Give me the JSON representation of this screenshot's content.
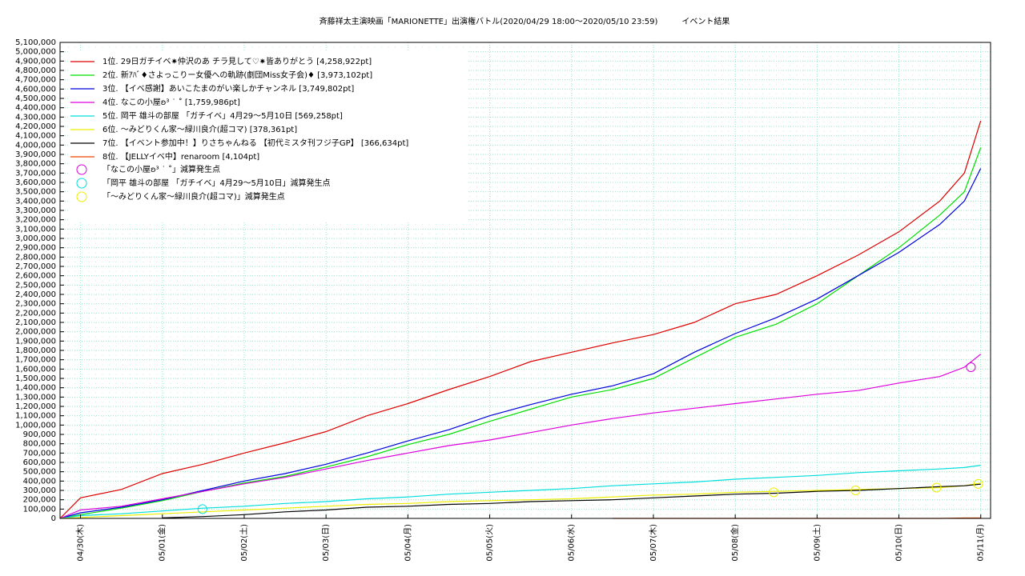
{
  "chart_data": {
    "type": "line",
    "title": "斉藤祥太主演映画「MARIONETTE」出演権バトル(2020/04/29 18:00～2020/05/10 23:59)　　　イベント結果",
    "x": [
      -0.25,
      0,
      0.5,
      1,
      1.5,
      2,
      2.5,
      3,
      3.5,
      4,
      4.5,
      5,
      5.5,
      6,
      6.5,
      7,
      7.5,
      8,
      8.5,
      9,
      9.5,
      10,
      10.5,
      10.8,
      11.0
    ],
    "xlim": [
      -0.25,
      11.12
    ],
    "xticks": [
      {
        "value": 0,
        "label": "04/30(木)"
      },
      {
        "value": 1,
        "label": "05/01(金)"
      },
      {
        "value": 2,
        "label": "05/02(土)"
      },
      {
        "value": 3,
        "label": "05/03(日)"
      },
      {
        "value": 4,
        "label": "05/04(月)"
      },
      {
        "value": 5,
        "label": "05/05(火)"
      },
      {
        "value": 6,
        "label": "05/06(水)"
      },
      {
        "value": 7,
        "label": "05/07(木)"
      },
      {
        "value": 8,
        "label": "05/08(金)"
      },
      {
        "value": 9,
        "label": "05/09(土)"
      },
      {
        "value": 10,
        "label": "05/10(日)"
      },
      {
        "value": 11,
        "label": "05/11(月)"
      }
    ],
    "ylim": [
      0,
      5100000
    ],
    "yticks": [
      0,
      {
        "value": 100000,
        "label": "100,000"
      },
      {
        "value": 200000,
        "label": "200,000"
      },
      {
        "value": 300000,
        "label": "300,000"
      },
      {
        "value": 400000,
        "label": "400,000"
      },
      {
        "value": 500000,
        "label": "500,000"
      },
      {
        "value": 600000,
        "label": "600,000"
      },
      {
        "value": 700000,
        "label": "700,000"
      },
      {
        "value": 800000,
        "label": "800,000"
      },
      {
        "value": 900000,
        "label": "900,000"
      },
      {
        "value": 1000000,
        "label": "1,000,000"
      },
      {
        "value": 1100000,
        "label": "1,100,000"
      },
      {
        "value": 1200000,
        "label": "1,200,000"
      },
      {
        "value": 1300000,
        "label": "1,300,000"
      },
      {
        "value": 1400000,
        "label": "1,400,000"
      },
      {
        "value": 1500000,
        "label": "1,500,000"
      },
      {
        "value": 1600000,
        "label": "1,600,000"
      },
      {
        "value": 1700000,
        "label": "1,700,000"
      },
      {
        "value": 1800000,
        "label": "1,800,000"
      },
      {
        "value": 1900000,
        "label": "1,900,000"
      },
      {
        "value": 2000000,
        "label": "2,000,000"
      },
      {
        "value": 2100000,
        "label": "2,100,000"
      },
      {
        "value": 2200000,
        "label": "2,200,000"
      },
      {
        "value": 2300000,
        "label": "2,300,000"
      },
      {
        "value": 2400000,
        "label": "2,400,000"
      },
      {
        "value": 2500000,
        "label": "2,500,000"
      },
      {
        "value": 2600000,
        "label": "2,600,000"
      },
      {
        "value": 2700000,
        "label": "2,700,000"
      },
      {
        "value": 2800000,
        "label": "2,800,000"
      },
      {
        "value": 2900000,
        "label": "2,900,000"
      },
      {
        "value": 3000000,
        "label": "3,000,000"
      },
      {
        "value": 3100000,
        "label": "3,100,000"
      },
      {
        "value": 3200000,
        "label": "3,200,000"
      },
      {
        "value": 3300000,
        "label": "3,300,000"
      },
      {
        "value": 3400000,
        "label": "3,400,000"
      },
      {
        "value": 3500000,
        "label": "3,500,000"
      },
      {
        "value": 3600000,
        "label": "3,600,000"
      },
      {
        "value": 3700000,
        "label": "3,700,000"
      },
      {
        "value": 3800000,
        "label": "3,800,000"
      },
      {
        "value": 3900000,
        "label": "3,900,000"
      },
      {
        "value": 4000000,
        "label": "4,000,000"
      },
      {
        "value": 4100000,
        "label": "4,100,000"
      },
      {
        "value": 4200000,
        "label": "4,200,000"
      },
      {
        "value": 4300000,
        "label": "4,300,000"
      },
      {
        "value": 4400000,
        "label": "4,400,000"
      },
      {
        "value": 4500000,
        "label": "4,500,000"
      },
      {
        "value": 4600000,
        "label": "4,600,000"
      },
      {
        "value": 4700000,
        "label": "4,700,000"
      },
      {
        "value": 4800000,
        "label": "4,800,000"
      },
      {
        "value": 4900000,
        "label": "4,900,000"
      },
      {
        "value": 5000000,
        "label": "5,000,000"
      },
      {
        "value": 5100000,
        "label": "5,100,000"
      }
    ],
    "grid": true,
    "legend": "upper left",
    "series": [
      {
        "name": "1位. 29日ガチイベ✷仲沢のあ チラ見して♡✷皆ありがとう [4,258,922pt]",
        "color": "#dd0000",
        "values": [
          0,
          220000,
          310000,
          480000,
          580000,
          700000,
          810000,
          930000,
          1100000,
          1230000,
          1380000,
          1520000,
          1680000,
          1780000,
          1880000,
          1970000,
          2100000,
          2300000,
          2400000,
          2600000,
          2820000,
          3070000,
          3400000,
          3700000,
          4258922
        ]
      },
      {
        "name": "2位. 新ｱﾊﾞ♦さよっこりー女優への軌跡(劇団Miss女子会)♦ [3,973,102pt]",
        "color": "#00dd00",
        "values": [
          0,
          40000,
          110000,
          190000,
          290000,
          380000,
          450000,
          550000,
          660000,
          790000,
          900000,
          1040000,
          1170000,
          1300000,
          1380000,
          1500000,
          1720000,
          1940000,
          2080000,
          2300000,
          2600000,
          2900000,
          3250000,
          3500000,
          3973102
        ]
      },
      {
        "name": "3位. 【イベ感謝】あいこたまのがい楽しかチャンネル [3,749,802pt]",
        "color": "#0000dd",
        "values": [
          0,
          60000,
          120000,
          200000,
          300000,
          400000,
          480000,
          580000,
          700000,
          830000,
          950000,
          1100000,
          1220000,
          1330000,
          1420000,
          1550000,
          1780000,
          1980000,
          2150000,
          2350000,
          2600000,
          2850000,
          3150000,
          3400000,
          3749802
        ]
      },
      {
        "name": "4位. なこの小屋ʚ³ ˙ ˚ [1,759,986pt]",
        "color": "#dd00dd",
        "values": [
          0,
          90000,
          130000,
          210000,
          290000,
          370000,
          440000,
          530000,
          620000,
          700000,
          780000,
          840000,
          920000,
          1000000,
          1070000,
          1130000,
          1180000,
          1230000,
          1280000,
          1330000,
          1370000,
          1450000,
          1520000,
          1620000,
          1759986
        ]
      },
      {
        "name": "5位. 岡平 雄斗の部屋 「ガチイベ」4月29～5月10日 [569,258pt]",
        "color": "#00dddd",
        "values": [
          0,
          30000,
          50000,
          80000,
          110000,
          130000,
          160000,
          180000,
          210000,
          230000,
          260000,
          280000,
          300000,
          320000,
          350000,
          370000,
          390000,
          420000,
          440000,
          460000,
          490000,
          510000,
          530000,
          545000,
          569258
        ]
      },
      {
        "name": "6位. ～みどりくん家～緑川良介(超コマ) [378,361pt]",
        "color": "#eeee00",
        "values": [
          0,
          10000,
          30000,
          50000,
          70000,
          90000,
          110000,
          130000,
          150000,
          160000,
          180000,
          190000,
          200000,
          210000,
          230000,
          250000,
          260000,
          280000,
          290000,
          300000,
          310000,
          320000,
          330000,
          350000,
          378361
        ]
      },
      {
        "name": "7位. 【イベント参加中！】りさちゃんねる 【初代ミスタ刊フジ子GP】 [366,634pt]",
        "color": "#000000",
        "values": [
          null,
          null,
          null,
          5000,
          20000,
          40000,
          70000,
          90000,
          120000,
          130000,
          150000,
          160000,
          180000,
          190000,
          200000,
          220000,
          240000,
          260000,
          270000,
          290000,
          300000,
          320000,
          340000,
          350000,
          366634
        ]
      },
      {
        "name": "8位. 【JELLYイベ中】renaroom [4,104pt]",
        "color": "#ee4400",
        "values": [
          null,
          null,
          null,
          null,
          null,
          null,
          null,
          null,
          null,
          null,
          null,
          null,
          null,
          null,
          0,
          0,
          0,
          0,
          0,
          0,
          0,
          0,
          0,
          4104,
          4104
        ]
      }
    ],
    "markers": [
      {
        "name": "「なこの小屋ʚ³ ˙ ˚」減算発生点",
        "color": "#dd00dd",
        "x": [
          10.88
        ],
        "values": [
          1620000
        ]
      },
      {
        "name": "「岡平 雄斗の部屋 「ガチイベ」4月29～5月10日」減算発生点",
        "color": "#00dddd",
        "x": [
          1.49
        ],
        "values": [
          100000
        ]
      },
      {
        "name": "「～みどりくん家～緑川良介(超コマ)」減算発生点",
        "color": "#eeee00",
        "x": [
          8.47,
          9.47,
          10.46,
          10.97
        ],
        "values": [
          280000,
          300000,
          330000,
          370000
        ]
      }
    ]
  }
}
